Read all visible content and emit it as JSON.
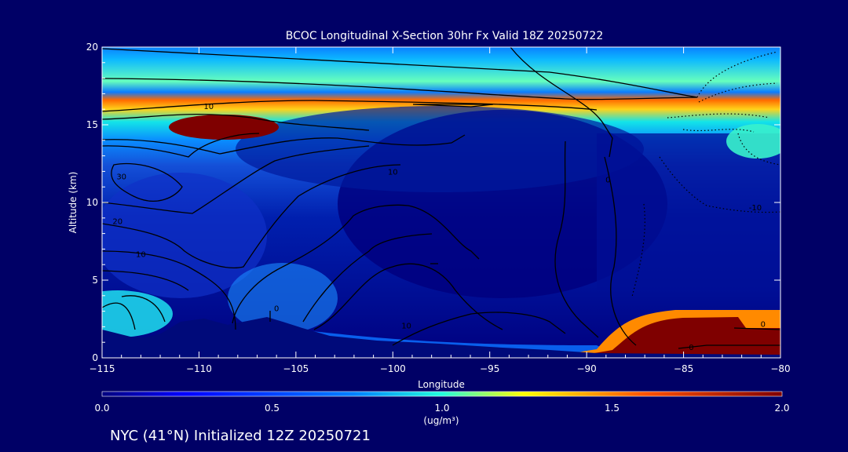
{
  "chart_data": {
    "type": "heatmap",
    "title": "BCOC Longitudinal X-Section 30hr  Fx Valid 18Z 20250722",
    "xlabel": "Longitude",
    "ylabel": "Altitude (km)",
    "xlim": [
      -115,
      -80
    ],
    "ylim": [
      0,
      20
    ],
    "x_ticks": [
      -115,
      -110,
      -105,
      -100,
      -95,
      -90,
      -85,
      -80
    ],
    "x_tick_labels": [
      "−115",
      "−110",
      "−105",
      "−100",
      "−95",
      "−90",
      "−85",
      "−80"
    ],
    "y_ticks": [
      0,
      5,
      10,
      15,
      20
    ],
    "y_tick_labels": [
      "0",
      "5",
      "10",
      "15",
      "20"
    ],
    "colorbar": {
      "min": 0.0,
      "max": 2.0,
      "ticks": [
        0.0,
        0.5,
        1.0,
        1.5,
        2.0
      ],
      "tick_labels": [
        "0.0",
        "0.5",
        "1.0",
        "1.5",
        "2.0"
      ],
      "units": "(ug/m³)"
    },
    "contour_labels": [
      {
        "text": "10",
        "lon": -109.5,
        "alt": 16.0
      },
      {
        "text": "30",
        "lon": -114.0,
        "alt": 11.5
      },
      {
        "text": "20",
        "lon": -114.2,
        "alt": 8.6
      },
      {
        "text": "10",
        "lon": -113.0,
        "alt": 6.5
      },
      {
        "text": "0",
        "lon": -106.0,
        "alt": 3.0
      },
      {
        "text": "10",
        "lon": -100.0,
        "alt": 11.8
      },
      {
        "text": "10",
        "lon": -99.3,
        "alt": 1.9
      },
      {
        "text": "0",
        "lon": -88.9,
        "alt": 11.3
      },
      {
        "text": "-10",
        "lon": -81.3,
        "alt": 9.5
      },
      {
        "text": "0",
        "lon": -80.9,
        "alt": 2.0
      },
      {
        "text": "0",
        "lon": -84.6,
        "alt": 0.5
      }
    ]
  },
  "footer": {
    "location_text": "NYC (41°N) Initialized 12Z 20250721"
  }
}
